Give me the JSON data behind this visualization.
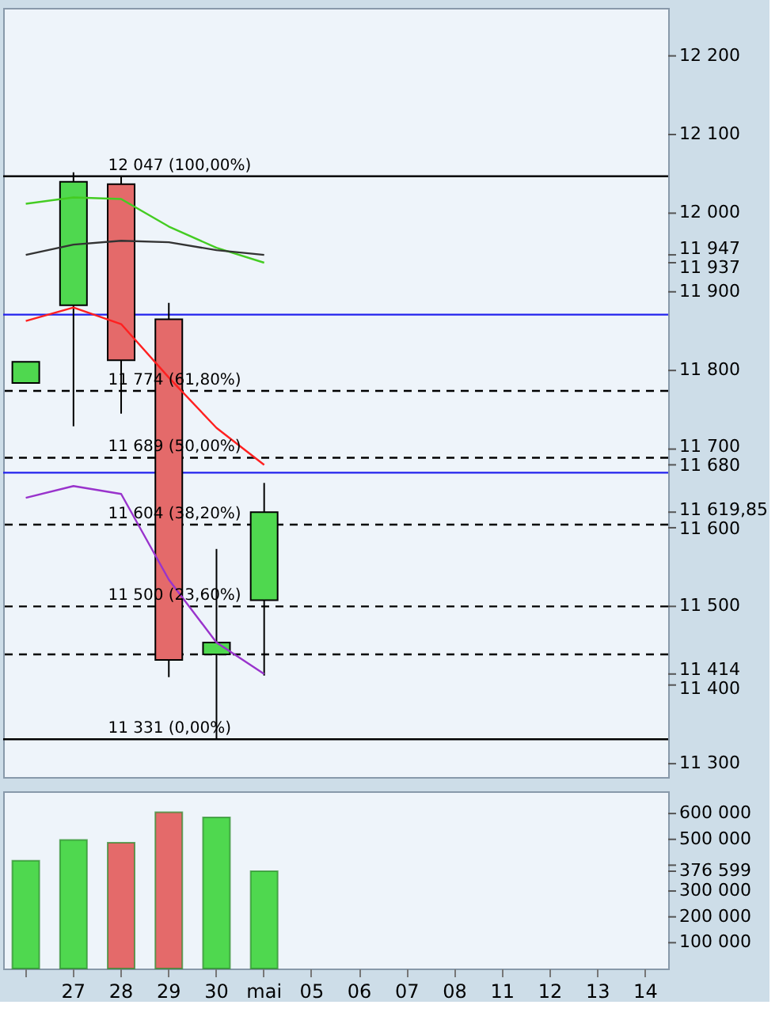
{
  "chart_data": [
    {
      "type": "candlestick",
      "categories": [
        null,
        null,
        null,
        null,
        null,
        null,
        null,
        null,
        null,
        null,
        null,
        null,
        null,
        null
      ],
      "ohlc": [
        [
          11784,
          11811,
          11784,
          11811
        ],
        [
          11883,
          12052,
          11729,
          12040
        ],
        [
          12037,
          12047,
          11745,
          11813
        ],
        [
          11865,
          11886,
          11410,
          11432
        ],
        [
          11439,
          11573,
          11331,
          11454
        ],
        [
          11508,
          11657,
          11412,
          11619.85
        ],
        null,
        null,
        null,
        null,
        null,
        null,
        null,
        null
      ],
      "colors": [
        "#4fd84f",
        "#4fd84f",
        "#e46a6a",
        "#e46a6a",
        "#4fd84f",
        "#4fd84f",
        null,
        null,
        null,
        null,
        null,
        null,
        null,
        null
      ],
      "series": [
        {
          "type": "line",
          "color": "#44cc22",
          "values": [
            12012,
            12020,
            12018,
            11983,
            11956,
            11937,
            null,
            null,
            null,
            null,
            null,
            null,
            null,
            null
          ]
        },
        {
          "type": "line",
          "color": "#333333",
          "values": [
            11947,
            11960,
            11965,
            11963,
            11953,
            11947,
            null,
            null,
            null,
            null,
            null,
            null,
            null,
            null
          ]
        },
        {
          "type": "line",
          "color": "#ff2020",
          "values": [
            11863,
            11880,
            11859,
            11791,
            11727,
            11680,
            null,
            null,
            null,
            null,
            null,
            null,
            null,
            null
          ]
        },
        {
          "type": "line",
          "color": "#9933cc",
          "values": [
            11638,
            11653,
            11643,
            11534,
            11454,
            11414,
            null,
            null,
            null,
            null,
            null,
            null,
            null,
            null
          ]
        }
      ],
      "ylim": [
        11283,
        12261
      ],
      "yticks": [
        {
          "value": 11300,
          "label": "11 300"
        },
        {
          "value": 11400,
          "label": "11 400"
        },
        {
          "value": 11414,
          "label": "11 414"
        },
        {
          "value": 11500,
          "label": "11 500"
        },
        {
          "value": 11600,
          "label": "11 600"
        },
        {
          "value": 11619.85,
          "label": "11 619,85"
        },
        {
          "value": 11680,
          "label": "11 680"
        },
        {
          "value": 11700,
          "label": "11 700"
        },
        {
          "value": 11800,
          "label": "11 800"
        },
        {
          "value": 11900,
          "label": "11 900"
        },
        {
          "value": 11937,
          "label": "11 937"
        },
        {
          "value": 11947,
          "label": "11 947"
        },
        {
          "value": 12000,
          "label": "12 000"
        },
        {
          "value": 12100,
          "label": "12 100"
        },
        {
          "value": 12200,
          "label": "12 200"
        }
      ],
      "ref_lines": [
        {
          "axis": "y",
          "value": 12047,
          "label": "12 047 (100,00%)",
          "color": "#000000",
          "line_style": "solid"
        },
        {
          "axis": "y",
          "value": 11774,
          "label": "11 774 (61,80%)",
          "color": "#000000",
          "line_style": "dashed"
        },
        {
          "axis": "y",
          "value": 11689,
          "label": "11 689 (50,00%)",
          "color": "#000000",
          "line_style": "dashed"
        },
        {
          "axis": "y",
          "value": 11604,
          "label": "11 604 (38,20%)",
          "color": "#000000",
          "line_style": "dashed"
        },
        {
          "axis": "y",
          "value": 11500,
          "label": "11 500 (23,60%)",
          "color": "#000000",
          "line_style": "dashed"
        },
        {
          "axis": "y",
          "value": 11331,
          "label": "11 331 (0,00%)",
          "color": "#000000",
          "line_style": "solid"
        },
        {
          "axis": "y",
          "value": 11439,
          "label": null,
          "color": "#000000",
          "line_style": "dashed"
        },
        {
          "axis": "y",
          "value": 11871,
          "label": null,
          "color": "#2222ee",
          "line_style": "solid"
        },
        {
          "axis": "y",
          "value": 11670,
          "label": null,
          "color": "#2222ee",
          "line_style": "solid"
        }
      ],
      "tick_labels": "y"
    },
    {
      "type": "bar",
      "categories": [
        null,
        "27",
        "28",
        "29",
        "30",
        "mai",
        "05",
        "06",
        "07",
        "08",
        "11",
        "12",
        "13",
        "14"
      ],
      "values": [
        417000,
        498000,
        487000,
        605000,
        585000,
        376599,
        null,
        null,
        null,
        null,
        null,
        null,
        null,
        null
      ],
      "colors": [
        "#4fd84f",
        "#4fd84f",
        "#e46a6a",
        "#e46a6a",
        "#4fd84f",
        "#4fd84f",
        null,
        null,
        null,
        null,
        null,
        null,
        null,
        null
      ],
      "ylim": [
        0,
        686000
      ],
      "yticks": [
        {
          "value": 100000,
          "label": "100 000"
        },
        {
          "value": 200000,
          "label": "200 000"
        },
        {
          "value": 300000,
          "label": "300 000"
        },
        {
          "value": 376599,
          "label": "376 599"
        },
        {
          "value": 400000,
          "label": null
        },
        {
          "value": 500000,
          "label": "500 000"
        },
        {
          "value": 600000,
          "label": "600 000"
        }
      ]
    }
  ]
}
